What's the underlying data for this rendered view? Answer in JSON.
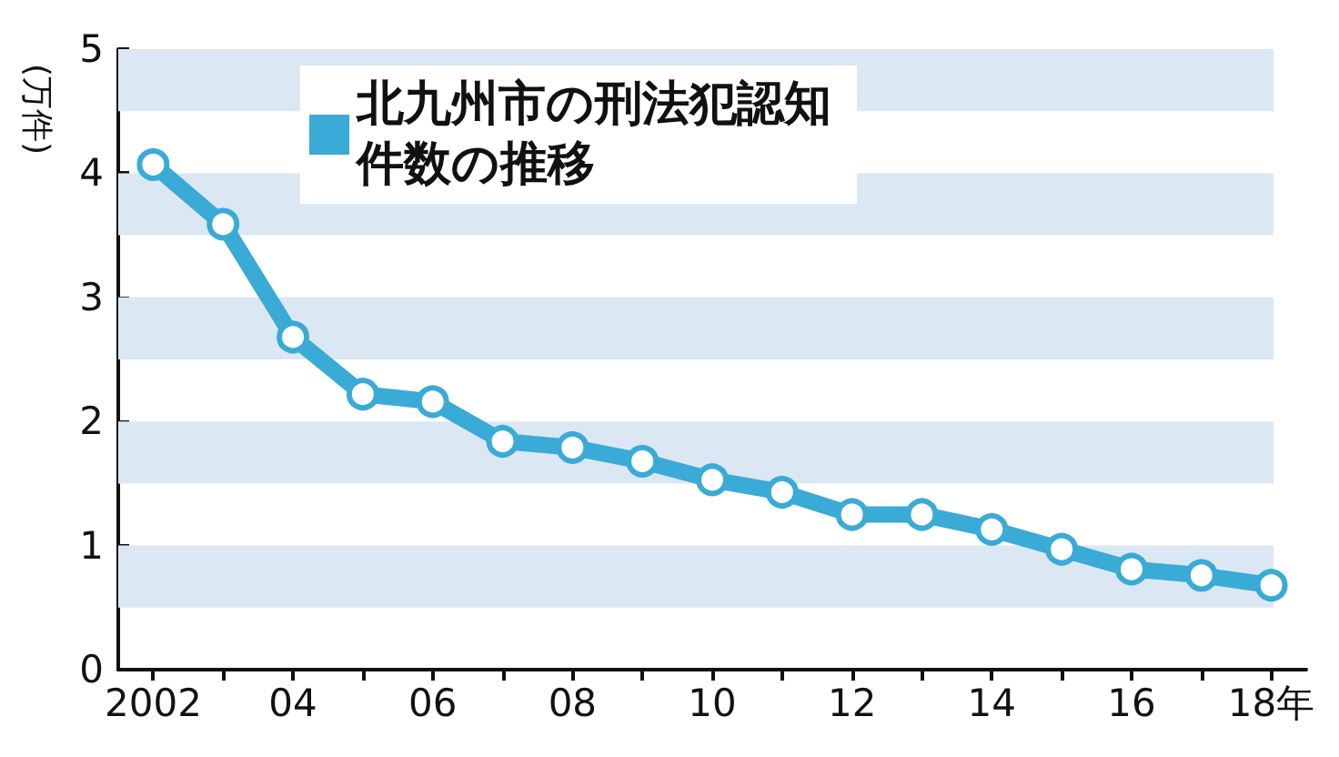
{
  "chart_data": {
    "type": "line",
    "legend": "top left",
    "ylabel": "(万件)",
    "categories": [
      "2002",
      null,
      "04",
      null,
      "06",
      null,
      "08",
      null,
      "10",
      null,
      "12",
      null,
      "14",
      null,
      "16",
      null,
      "18年"
    ],
    "series": [
      {
        "name": "北九州市の刑法犯認知件数の推移",
        "color": "#3aaad6",
        "values": [
          4.07,
          3.59,
          2.68,
          2.22,
          2.16,
          1.84,
          1.79,
          1.68,
          1.53,
          1.43,
          1.25,
          1.25,
          1.13,
          0.97,
          0.81,
          0.76,
          0.68
        ]
      }
    ],
    "ylim": [
      0,
      5
    ],
    "yticks": [
      0,
      1,
      2,
      3,
      4,
      5
    ],
    "bands": [
      {
        "axis": "y",
        "from": 0.5,
        "to": 1,
        "color": "#dbe8f3"
      },
      {
        "axis": "y",
        "from": 1.5,
        "to": 2,
        "color": "#dbe8f3"
      },
      {
        "axis": "y",
        "from": 2.5,
        "to": 3,
        "color": "#dbe8f3"
      },
      {
        "axis": "y",
        "from": 3.5,
        "to": 4,
        "color": "#dbe8f3"
      },
      {
        "axis": "y",
        "from": 4.5,
        "to": 5,
        "color": "#dbe8f3"
      }
    ],
    "grid": false,
    "marker": "circle",
    "line_style": "solid"
  }
}
